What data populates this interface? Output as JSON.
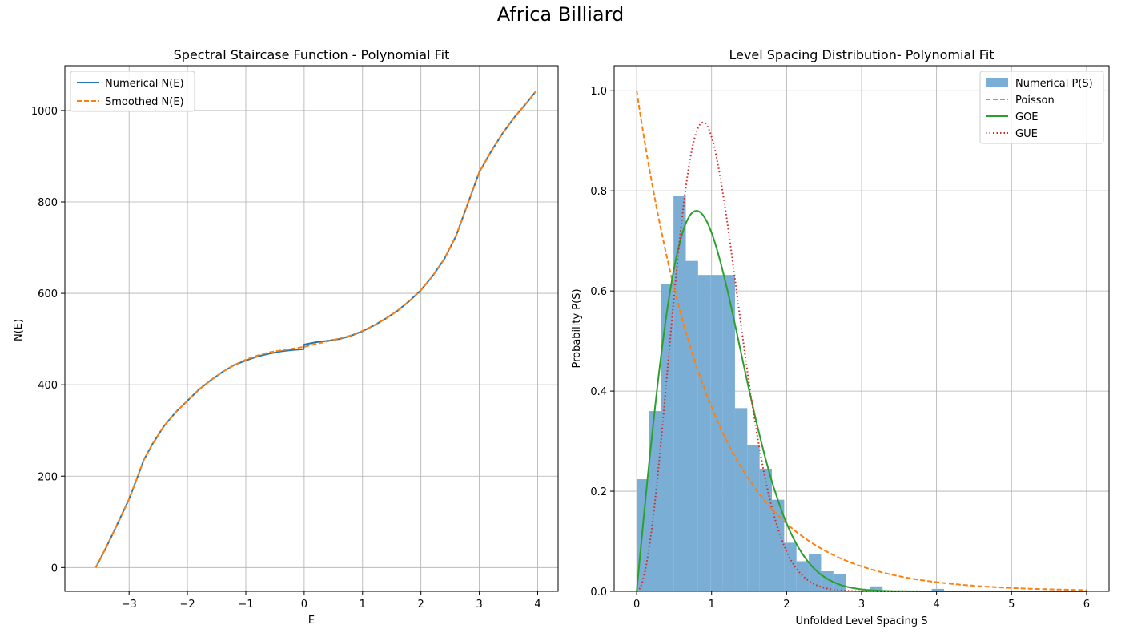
{
  "figure": {
    "title": "Africa Billiard"
  },
  "colors": {
    "blue": "#1f77b4",
    "orange": "#ff7f0e",
    "green": "#2ca02c",
    "red": "#d62728",
    "bar": "#7aaed5",
    "grid": "#b0b0b0"
  },
  "chart_data": [
    {
      "type": "line",
      "title": "Spectral Staircase Function - Polynomial Fit",
      "xlabel": "E",
      "ylabel": "N(E)",
      "xlim": [
        -4.1,
        4.35
      ],
      "ylim": [
        -52,
        1098
      ],
      "xticks": [
        -3,
        -2,
        -1,
        0,
        1,
        2,
        3,
        4
      ],
      "xtick_labels": [
        "−3",
        "−2",
        "−1",
        "0",
        "1",
        "2",
        "3",
        "4"
      ],
      "yticks": [
        0,
        200,
        400,
        600,
        800,
        1000
      ],
      "ytick_labels": [
        "0",
        "200",
        "400",
        "600",
        "800",
        "1000"
      ],
      "grid": true,
      "legend": "top-left",
      "series": [
        {
          "name": "Numerical N(E)",
          "style": "solid",
          "color": "#1f77b4",
          "x": [
            -3.57,
            -3.4,
            -3.2,
            -3.0,
            -2.85,
            -2.75,
            -2.6,
            -2.4,
            -2.2,
            -2.0,
            -1.8,
            -1.6,
            -1.4,
            -1.2,
            -1.0,
            -0.8,
            -0.6,
            -0.4,
            -0.2,
            -0.01,
            0.0,
            0.2,
            0.4,
            0.6,
            0.8,
            1.0,
            1.2,
            1.4,
            1.6,
            1.8,
            2.0,
            2.2,
            2.4,
            2.6,
            2.8,
            3.0,
            3.2,
            3.4,
            3.6,
            3.8,
            3.97
          ],
          "y": [
            0,
            42,
            95,
            150,
            200,
            235,
            270,
            310,
            340,
            365,
            390,
            410,
            428,
            443,
            453,
            462,
            468,
            473,
            476,
            478,
            488,
            493,
            496,
            500,
            507,
            517,
            530,
            545,
            562,
            583,
            607,
            638,
            675,
            725,
            795,
            865,
            910,
            950,
            985,
            1015,
            1042
          ]
        },
        {
          "name": "Smoothed N(E)",
          "style": "dashed",
          "color": "#ff7f0e",
          "x": [
            -3.57,
            -3.4,
            -3.2,
            -3.0,
            -2.85,
            -2.75,
            -2.6,
            -2.4,
            -2.2,
            -2.0,
            -1.8,
            -1.6,
            -1.4,
            -1.2,
            -1.0,
            -0.8,
            -0.6,
            -0.4,
            -0.2,
            0.0,
            0.2,
            0.4,
            0.6,
            0.8,
            1.0,
            1.2,
            1.4,
            1.6,
            1.8,
            2.0,
            2.2,
            2.4,
            2.6,
            2.8,
            3.0,
            3.2,
            3.4,
            3.6,
            3.8,
            3.97
          ],
          "y": [
            0,
            42,
            95,
            150,
            200,
            235,
            270,
            310,
            340,
            365,
            390,
            410,
            428,
            443,
            455,
            464,
            471,
            475,
            479,
            483,
            489,
            495,
            501,
            508,
            518,
            530,
            545,
            562,
            583,
            607,
            638,
            675,
            725,
            795,
            865,
            910,
            950,
            985,
            1015,
            1042
          ]
        }
      ]
    },
    {
      "type": "bar",
      "title": "Level Spacing Distribution- Polynomial Fit",
      "xlabel": "Unfolded Level Spacing S",
      "ylabel": "Probability P(S)",
      "xlim": [
        -0.3,
        6.3
      ],
      "ylim": [
        0,
        1.05
      ],
      "xticks": [
        0,
        1,
        2,
        3,
        4,
        5,
        6
      ],
      "xtick_labels": [
        "0",
        "1",
        "2",
        "3",
        "4",
        "5",
        "6"
      ],
      "yticks": [
        0.0,
        0.2,
        0.4,
        0.6,
        0.8,
        1.0
      ],
      "ytick_labels": [
        "0.0",
        "0.2",
        "0.4",
        "0.6",
        "0.8",
        "1.0"
      ],
      "grid": true,
      "legend": "top-right",
      "histogram": {
        "name": "Numerical P(S)",
        "bin_width": 0.164,
        "bin_starts": [
          0.0,
          0.164,
          0.328,
          0.492,
          0.656,
          0.82,
          0.984,
          1.148,
          1.312,
          1.476,
          1.64,
          1.804,
          1.968,
          2.132,
          2.296,
          2.46,
          2.624,
          2.788,
          2.952,
          3.116,
          3.936
        ],
        "values": [
          0.224,
          0.36,
          0.614,
          0.79,
          0.66,
          0.632,
          0.632,
          0.632,
          0.366,
          0.292,
          0.245,
          0.183,
          0.097,
          0.06,
          0.075,
          0.04,
          0.035,
          0.0,
          0.0,
          0.01,
          0.005
        ]
      },
      "curves": [
        {
          "name": "Poisson",
          "style": "dashed",
          "color": "#ff7f0e",
          "formula": "exp(-s)"
        },
        {
          "name": "GOE",
          "style": "solid",
          "color": "#2ca02c",
          "formula": "(pi/2) s exp(-pi s^2 / 4)"
        },
        {
          "name": "GUE",
          "style": "dotted",
          "color": "#d62728",
          "formula": "(32/pi^2) s^2 exp(-4 s^2 / pi)"
        }
      ]
    }
  ]
}
